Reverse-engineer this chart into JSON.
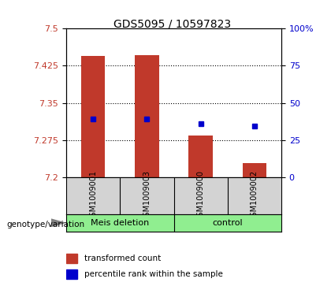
{
  "title": "GDS5095 / 10597823",
  "samples": [
    "GSM1009001",
    "GSM1009003",
    "GSM1009000",
    "GSM1009002"
  ],
  "groups": [
    "Meis deletion",
    "Meis deletion",
    "control",
    "control"
  ],
  "group_labels": [
    "Meis deletion",
    "control"
  ],
  "bar_bottom": 7.2,
  "bar_tops": [
    7.445,
    7.447,
    7.285,
    7.228
  ],
  "percentile_values": [
    7.318,
    7.317,
    7.308,
    7.303
  ],
  "ylim_left": [
    7.2,
    7.5
  ],
  "ylim_right": [
    0,
    100
  ],
  "yticks_left": [
    7.2,
    7.275,
    7.35,
    7.425,
    7.5
  ],
  "ytick_labels_left": [
    "7.2",
    "7.275",
    "7.35",
    "7.425",
    "7.5"
  ],
  "yticks_right": [
    0,
    25,
    50,
    75,
    100
  ],
  "ytick_labels_right": [
    "0",
    "25",
    "50",
    "75",
    "100%"
  ],
  "bar_color": "#c0392b",
  "dot_color": "#0000cc",
  "bg_plot": "#ffffff",
  "bg_xaxis": "#d3d3d3",
  "bg_group": "#90ee90",
  "legend_bar_label": "transformed count",
  "legend_dot_label": "percentile rank within the sample",
  "xlabel_left": "genotype/variation",
  "grid_yticks": [
    7.275,
    7.35,
    7.425
  ]
}
